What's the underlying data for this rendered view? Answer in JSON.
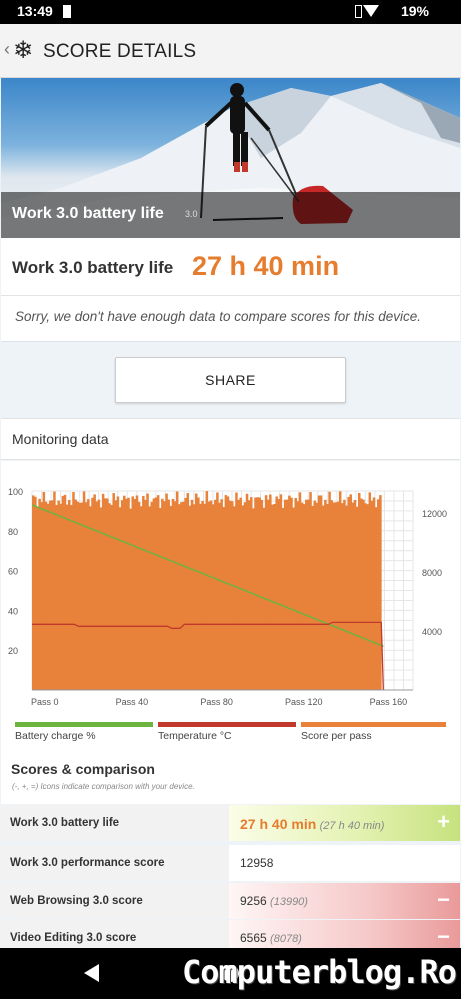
{
  "status_bar": {
    "time": "13:49",
    "battery": "19%"
  },
  "app_bar": {
    "title": "SCORE DETAILS",
    "logo_icon": "snowflake-icon",
    "back_icon": "chevron-left-icon"
  },
  "hero": {
    "caption": "Work 3.0 battery life",
    "version": "3.0"
  },
  "result": {
    "label": "Work 3.0 battery life",
    "value": "27 h 40 min"
  },
  "notice": "Sorry, we don't have enough data to compare scores for this device.",
  "share_label": "SHARE",
  "monitoring_title": "Monitoring data",
  "chart_data": {
    "type": "bar",
    "left_axis": {
      "ticks": [
        20,
        40,
        60,
        80,
        100
      ],
      "ylim": [
        0,
        100
      ]
    },
    "right_axis": {
      "ticks": [
        4000,
        8000,
        12000
      ],
      "ylim": [
        0,
        13500
      ]
    },
    "x_ticks": [
      "Pass 0",
      "Pass 40",
      "Pass 80",
      "Pass 120",
      "Pass 160"
    ],
    "passes": 180,
    "series": [
      {
        "name": "Battery charge %",
        "color": "#6db33f",
        "axis": "left",
        "points": [
          [
            0,
            93
          ],
          [
            166,
            22
          ]
        ]
      },
      {
        "name": "Temperature °C",
        "color": "#c0392b",
        "axis": "left",
        "points": [
          [
            0,
            33
          ],
          [
            20,
            33
          ],
          [
            22,
            32
          ],
          [
            64,
            32
          ],
          [
            66,
            31
          ],
          [
            70,
            31
          ],
          [
            72,
            33
          ],
          [
            140,
            33
          ],
          [
            142,
            34
          ],
          [
            165,
            34
          ],
          [
            166,
            0
          ]
        ]
      },
      {
        "name": "Score per pass",
        "color": "#e8823a",
        "axis": "right",
        "typical_value": 12900,
        "range": [
          12300,
          13500
        ],
        "last_pass": 165
      }
    ]
  },
  "legend": [
    {
      "label": "Battery charge %",
      "color": "#6db33f"
    },
    {
      "label": "Temperature °C",
      "color": "#c0392b"
    },
    {
      "label": "Score per pass",
      "color": "#e8823a"
    }
  ],
  "scores": {
    "title": "Scores & comparison",
    "subtitle": "(-, +, =) Icons indicate comparison with your device.",
    "rows": [
      {
        "name": "Work 3.0 battery life",
        "value": "27 h 40 min",
        "compare": "(27 h 40 min)",
        "sign": "+",
        "tone": "green"
      },
      {
        "name": "Work 3.0 performance score",
        "value": "12958",
        "compare": "",
        "sign": "",
        "tone": "none"
      },
      {
        "name": "Web Browsing 3.0 score",
        "value": "9256",
        "compare": "(13990)",
        "sign": "−",
        "tone": "red"
      },
      {
        "name": "Video Editing 3.0 score",
        "value": "6565",
        "compare": "(8078)",
        "sign": "−",
        "tone": "red"
      }
    ]
  },
  "watermark": "Computerblog.Ro"
}
